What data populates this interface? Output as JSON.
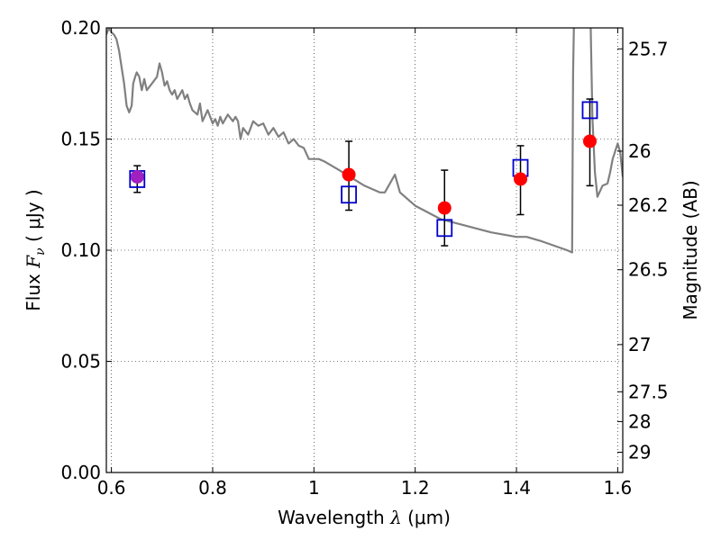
{
  "chart_data": {
    "type": "scatter",
    "xlabel": {
      "pre": "Wavelength  ",
      "sym": "λ",
      "post": " (μm)"
    },
    "ylabel": {
      "pre": "Flux  ",
      "sym": "F",
      "sub": "ν",
      "post": "  ( μJy )"
    },
    "y2label": "Magnitude (AB)",
    "xlim": [
      0.59,
      1.61
    ],
    "ylim": [
      0.0,
      0.2
    ],
    "grid": true,
    "x_ticks": [
      {
        "value": 0.6,
        "label": "0.6"
      },
      {
        "value": 0.8,
        "label": "0.8"
      },
      {
        "value": 1.0,
        "label": "1"
      },
      {
        "value": 1.2,
        "label": "1.2"
      },
      {
        "value": 1.4,
        "label": "1.4"
      },
      {
        "value": 1.6,
        "label": "1.6"
      }
    ],
    "y_ticks": [
      {
        "value": 0.0,
        "label": "0.00"
      },
      {
        "value": 0.05,
        "label": "0.05"
      },
      {
        "value": 0.1,
        "label": "0.10"
      },
      {
        "value": 0.15,
        "label": "0.15"
      },
      {
        "value": 0.2,
        "label": "0.20"
      }
    ],
    "y2_ticks": [
      {
        "value": 25.7,
        "label": "25.7"
      },
      {
        "value": 26.0,
        "label": "26"
      },
      {
        "value": 26.2,
        "label": "26.2"
      },
      {
        "value": 26.5,
        "label": "26.5"
      },
      {
        "value": 27.0,
        "label": "27"
      },
      {
        "value": 27.5,
        "label": "27.5"
      },
      {
        "value": 28.0,
        "label": "28"
      },
      {
        "value": 29.0,
        "label": "29"
      }
    ],
    "series": [
      {
        "kind": "line",
        "color": "#808080",
        "x": [
          0.59,
          0.595,
          0.6,
          0.605,
          0.61,
          0.615,
          0.625,
          0.63,
          0.635,
          0.64,
          0.643,
          0.647,
          0.65,
          0.655,
          0.66,
          0.665,
          0.67,
          0.68,
          0.69,
          0.695,
          0.7,
          0.705,
          0.71,
          0.715,
          0.72,
          0.725,
          0.73,
          0.74,
          0.745,
          0.75,
          0.755,
          0.76,
          0.77,
          0.775,
          0.78,
          0.79,
          0.8,
          0.805,
          0.81,
          0.815,
          0.82,
          0.83,
          0.84,
          0.845,
          0.85,
          0.855,
          0.86,
          0.87,
          0.88,
          0.89,
          0.9,
          0.91,
          0.92,
          0.93,
          0.94,
          0.95,
          0.96,
          0.97,
          0.98,
          0.99,
          1.0,
          1.01,
          1.02,
          1.05,
          1.1,
          1.13,
          1.14,
          1.15,
          1.16,
          1.17,
          1.2,
          1.25,
          1.3,
          1.35,
          1.4,
          1.41,
          1.42,
          1.45,
          1.5,
          1.51,
          1.512,
          1.515,
          1.52,
          1.53,
          1.54,
          1.545,
          1.55,
          1.555,
          1.56,
          1.57,
          1.58,
          1.585,
          1.59,
          1.6,
          1.605,
          1.61
        ],
        "y": [
          0.197,
          0.2,
          0.198,
          0.197,
          0.195,
          0.19,
          0.175,
          0.165,
          0.162,
          0.165,
          0.175,
          0.178,
          0.18,
          0.178,
          0.172,
          0.177,
          0.172,
          0.175,
          0.178,
          0.184,
          0.18,
          0.174,
          0.176,
          0.172,
          0.17,
          0.172,
          0.168,
          0.172,
          0.168,
          0.17,
          0.166,
          0.163,
          0.161,
          0.166,
          0.158,
          0.163,
          0.157,
          0.159,
          0.156,
          0.16,
          0.157,
          0.161,
          0.158,
          0.16,
          0.158,
          0.15,
          0.155,
          0.152,
          0.158,
          0.156,
          0.157,
          0.152,
          0.155,
          0.151,
          0.153,
          0.148,
          0.15,
          0.147,
          0.146,
          0.141,
          0.141,
          0.141,
          0.14,
          0.136,
          0.129,
          0.126,
          0.126,
          0.13,
          0.134,
          0.126,
          0.12,
          0.114,
          0.111,
          0.108,
          0.106,
          0.106,
          0.106,
          0.104,
          0.1,
          0.099,
          0.18,
          0.22,
          0.22,
          0.22,
          0.22,
          0.22,
          0.16,
          0.135,
          0.124,
          0.129,
          0.13,
          0.135,
          0.141,
          0.148,
          0.144,
          0.133
        ]
      },
      {
        "kind": "errorbar",
        "color": "#000000",
        "x": [
          0.651,
          1.069,
          1.258,
          1.408,
          1.545
        ],
        "low": [
          0.126,
          0.118,
          0.102,
          0.116,
          0.129
        ],
        "high": [
          0.138,
          0.149,
          0.136,
          0.147,
          0.168
        ]
      },
      {
        "kind": "scatter",
        "marker": "square-open",
        "color": "#0000cc",
        "x": [
          0.651,
          1.069,
          1.258,
          1.408,
          1.545
        ],
        "y": [
          0.132,
          0.125,
          0.11,
          0.137,
          0.163
        ]
      },
      {
        "kind": "scatter",
        "marker": "circle",
        "color": "#ff0000",
        "x": [
          0.651,
          1.069,
          1.258,
          1.408,
          1.545
        ],
        "y": [
          0.133,
          0.134,
          0.119,
          0.132,
          0.149
        ],
        "colors": [
          "#a020c0",
          "#ff0000",
          "#ff0000",
          "#ff0000",
          "#ff0000"
        ]
      }
    ]
  }
}
